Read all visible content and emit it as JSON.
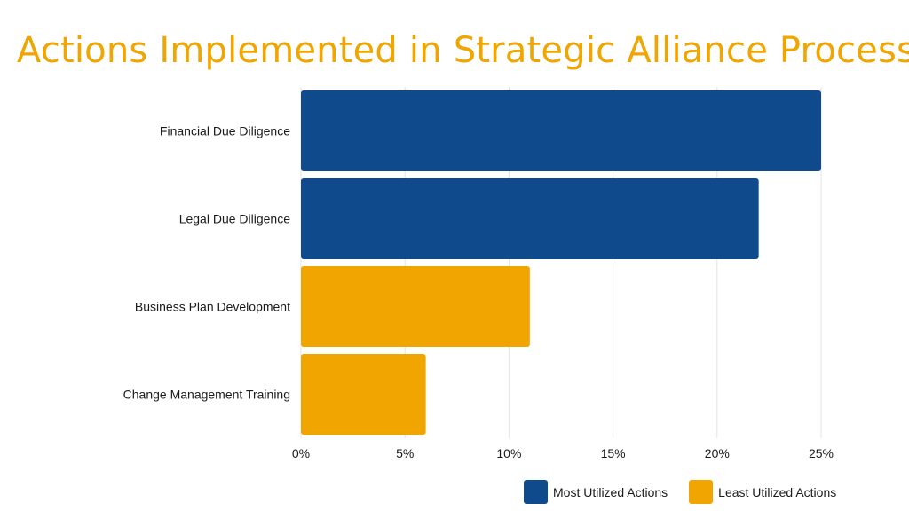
{
  "chart_data": {
    "type": "bar",
    "orientation": "horizontal",
    "title": "Actions Implemented in Strategic Alliance Process",
    "categories": [
      "Financial Due Diligence",
      "Legal Due Diligence",
      "Business Plan Development",
      "Change Management Training"
    ],
    "values": [
      25,
      22,
      11,
      6
    ],
    "groups": [
      "Most Utilized Actions",
      "Most Utilized Actions",
      "Least Utilized Actions",
      "Least Utilized Actions"
    ],
    "value_unit": "%",
    "xlim": [
      0,
      25
    ],
    "xticks": [
      0,
      5,
      10,
      15,
      20,
      25
    ],
    "xtick_labels": [
      "0%",
      "5%",
      "10%",
      "15%",
      "20%",
      "25%"
    ],
    "grid": "vertical",
    "legend_position": "bottom-right",
    "legend": [
      {
        "label": "Most Utilized Actions",
        "color": "#0e4a8c"
      },
      {
        "label": "Least Utilized Actions",
        "color": "#f0a500"
      }
    ]
  }
}
